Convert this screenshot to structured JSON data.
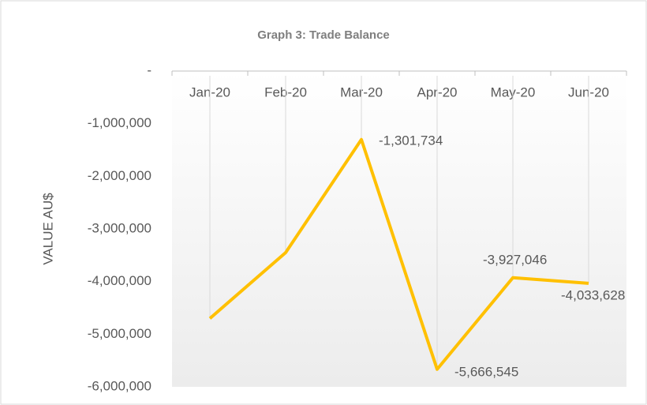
{
  "chart_data": {
    "type": "line",
    "title": "Graph 3: Trade Balance",
    "y_label": "VALUE AU$",
    "categories": [
      "Jan-20",
      "Feb-20",
      "Mar-20",
      "Apr-20",
      "May-20",
      "Jun-20"
    ],
    "values": [
      -4700000,
      -3450000,
      -1301734,
      -5666545,
      -3927046,
      -4033628
    ],
    "value_labels": [
      null,
      null,
      "-1,301,734",
      "-5,666,545",
      "-3,927,046",
      "-4,033,628"
    ],
    "color": "#ffc000",
    "ylim": [
      -6000000,
      0
    ],
    "yticks": [
      {
        "value": 0,
        "label": "-"
      },
      {
        "value": -1000000,
        "label": "-1,000,000"
      },
      {
        "value": -2000000,
        "label": "-2,000,000"
      },
      {
        "value": -3000000,
        "label": "-3,000,000"
      },
      {
        "value": -4000000,
        "label": "-4,000,000"
      },
      {
        "value": -5000000,
        "label": "-5,000,000"
      },
      {
        "value": -6000000,
        "label": "-6,000,000"
      }
    ],
    "drop_lines": true
  }
}
